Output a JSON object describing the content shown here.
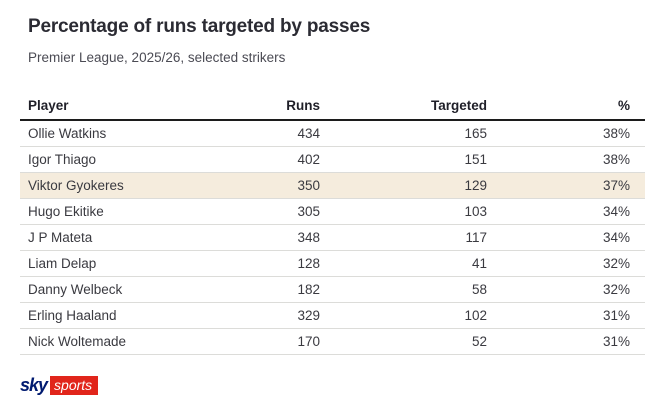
{
  "header": {
    "title": "Percentage of runs targeted by passes",
    "subtitle": "Premier League, 2025/26, selected strikers"
  },
  "table": {
    "columns": [
      "Player",
      "Runs",
      "Targeted",
      "%"
    ],
    "rows": [
      {
        "player": "Ollie Watkins",
        "runs": "434",
        "targeted": "165",
        "pct": "38%",
        "highlighted": false
      },
      {
        "player": "Igor Thiago",
        "runs": "402",
        "targeted": "151",
        "pct": "38%",
        "highlighted": false
      },
      {
        "player": "Viktor Gyokeres",
        "runs": "350",
        "targeted": "129",
        "pct": "37%",
        "highlighted": true
      },
      {
        "player": "Hugo Ekitike",
        "runs": "305",
        "targeted": "103",
        "pct": "34%",
        "highlighted": false
      },
      {
        "player": "J P Mateta",
        "runs": "348",
        "targeted": "117",
        "pct": "34%",
        "highlighted": false
      },
      {
        "player": "Liam Delap",
        "runs": "128",
        "targeted": "41",
        "pct": "32%",
        "highlighted": false
      },
      {
        "player": "Danny Welbeck",
        "runs": "182",
        "targeted": "58",
        "pct": "32%",
        "highlighted": false
      },
      {
        "player": "Erling Haaland",
        "runs": "329",
        "targeted": "102",
        "pct": "31%",
        "highlighted": false
      },
      {
        "player": "Nick Woltemade",
        "runs": "170",
        "targeted": "52",
        "pct": "31%",
        "highlighted": false
      }
    ],
    "highlight_color": "#f5ecdd"
  },
  "footer": {
    "logo": {
      "sky_text": "sky",
      "sports_text": "sports",
      "navy": "#001a70",
      "red": "#e1251b",
      "sports_text_color": "#ffffff"
    }
  },
  "chart_data": {
    "type": "table",
    "title": "Percentage of runs targeted by passes",
    "subtitle": "Premier League, 2025/26, selected strikers",
    "columns": [
      "Player",
      "Runs",
      "Targeted",
      "%"
    ],
    "rows": [
      [
        "Ollie Watkins",
        434,
        165,
        "38%"
      ],
      [
        "Igor Thiago",
        402,
        151,
        "38%"
      ],
      [
        "Viktor Gyokeres",
        350,
        129,
        "37%"
      ],
      [
        "Hugo Ekitike",
        305,
        103,
        "34%"
      ],
      [
        "J P Mateta",
        348,
        117,
        "34%"
      ],
      [
        "Liam Delap",
        128,
        41,
        "32%"
      ],
      [
        "Danny Welbeck",
        182,
        58,
        "32%"
      ],
      [
        "Erling Haaland",
        329,
        102,
        "31%"
      ],
      [
        "Nick Woltemade",
        170,
        52,
        "31%"
      ]
    ],
    "highlighted_row": "Viktor Gyokeres",
    "source_brand": "sky sports"
  }
}
